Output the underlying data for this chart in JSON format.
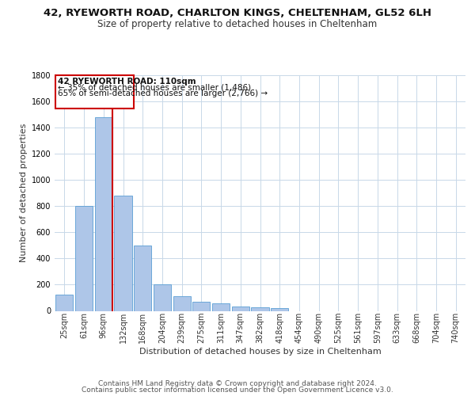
{
  "title_line1": "42, RYEWORTH ROAD, CHARLTON KINGS, CHELTENHAM, GL52 6LH",
  "title_line2": "Size of property relative to detached houses in Cheltenham",
  "xlabel": "Distribution of detached houses by size in Cheltenham",
  "ylabel": "Number of detached properties",
  "bar_color": "#aec6e8",
  "bar_edge_color": "#5a9fd4",
  "categories": [
    "25sqm",
    "61sqm",
    "96sqm",
    "132sqm",
    "168sqm",
    "204sqm",
    "239sqm",
    "275sqm",
    "311sqm",
    "347sqm",
    "382sqm",
    "418sqm",
    "454sqm",
    "490sqm",
    "525sqm",
    "561sqm",
    "597sqm",
    "633sqm",
    "668sqm",
    "704sqm",
    "740sqm"
  ],
  "values": [
    125,
    800,
    1480,
    880,
    500,
    205,
    110,
    70,
    55,
    35,
    25,
    20,
    0,
    0,
    0,
    0,
    0,
    0,
    0,
    0,
    0
  ],
  "ylim": [
    0,
    1800
  ],
  "yticks": [
    0,
    200,
    400,
    600,
    800,
    1000,
    1200,
    1400,
    1600,
    1800
  ],
  "annotation_text_line1": "42 RYEWORTH ROAD: 110sqm",
  "annotation_text_line2": "← 35% of detached houses are smaller (1,486)",
  "annotation_text_line3": "65% of semi-detached houses are larger (2,766) →",
  "annotation_box_color": "#ffffff",
  "annotation_box_edge_color": "#cc0000",
  "red_line_color": "#cc0000",
  "footer_line1": "Contains HM Land Registry data © Crown copyright and database right 2024.",
  "footer_line2": "Contains public sector information licensed under the Open Government Licence v3.0.",
  "background_color": "#ffffff",
  "grid_color": "#c8d8e8",
  "title_fontsize": 9.5,
  "subtitle_fontsize": 8.5,
  "axis_label_fontsize": 8,
  "tick_fontsize": 7,
  "annotation_fontsize": 7.5,
  "footer_fontsize": 6.5
}
